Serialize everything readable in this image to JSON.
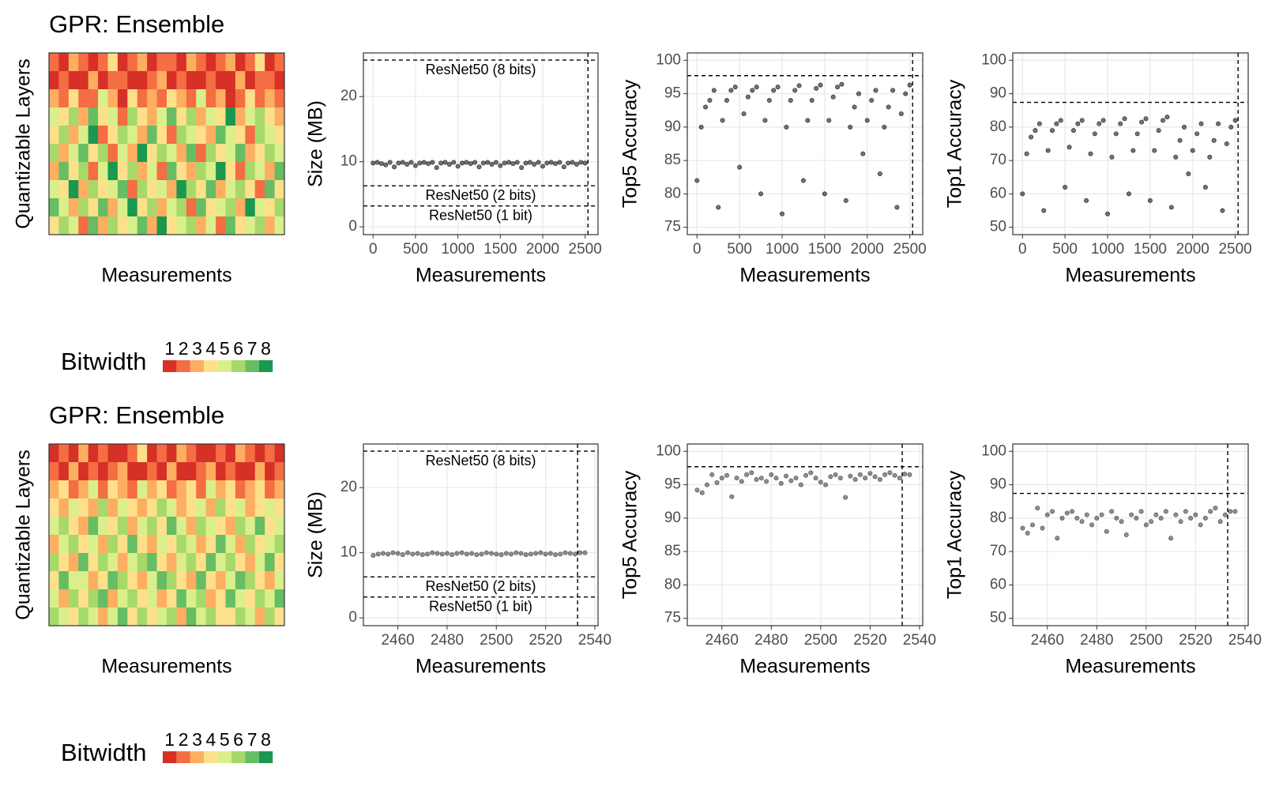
{
  "chart_data": [
    {
      "type": "heatmap",
      "title": "GPR: Ensemble",
      "x_label": "Measurements",
      "y_label": "Quantizable Layers",
      "legend_title": "Bitwidth",
      "legend_values": [
        1,
        2,
        3,
        4,
        5,
        6,
        7,
        8
      ],
      "colors": [
        "#d73027",
        "#f46d43",
        "#fdae61",
        "#fee08b",
        "#d9ef8b",
        "#a6d96a",
        "#66bd63",
        "#1a9850"
      ],
      "values": [
        [
          2,
          1,
          3,
          2,
          1,
          2,
          4,
          1,
          2,
          3,
          1,
          2,
          2,
          1,
          3,
          2,
          1,
          2,
          3,
          1,
          2,
          4,
          1,
          2
        ],
        [
          1,
          2,
          1,
          1,
          3,
          1,
          2,
          2,
          1,
          1,
          2,
          3,
          1,
          2,
          1,
          1,
          2,
          1,
          1,
          3,
          1,
          2,
          2,
          1
        ],
        [
          3,
          2,
          4,
          2,
          2,
          5,
          3,
          1,
          4,
          2,
          3,
          2,
          4,
          3,
          2,
          5,
          2,
          3,
          1,
          2,
          4,
          2,
          3,
          2
        ],
        [
          5,
          4,
          6,
          3,
          7,
          4,
          5,
          2,
          6,
          4,
          3,
          5,
          7,
          4,
          6,
          3,
          5,
          4,
          8,
          3,
          5,
          6,
          4,
          3
        ],
        [
          4,
          6,
          3,
          5,
          8,
          2,
          4,
          6,
          5,
          3,
          7,
          4,
          2,
          6,
          5,
          4,
          3,
          7,
          5,
          4,
          2,
          6,
          5,
          4
        ],
        [
          6,
          3,
          5,
          7,
          4,
          6,
          2,
          5,
          3,
          8,
          4,
          6,
          5,
          3,
          7,
          2,
          6,
          4,
          5,
          7,
          3,
          4,
          6,
          5
        ],
        [
          3,
          7,
          4,
          6,
          2,
          5,
          8,
          4,
          6,
          3,
          5,
          2,
          7,
          4,
          3,
          6,
          5,
          8,
          4,
          2,
          6,
          5,
          3,
          7
        ],
        [
          5,
          4,
          8,
          3,
          6,
          4,
          5,
          7,
          2,
          6,
          4,
          5,
          3,
          8,
          6,
          4,
          7,
          3,
          5,
          6,
          4,
          2,
          7,
          4
        ],
        [
          7,
          5,
          3,
          6,
          4,
          7,
          3,
          5,
          8,
          4,
          6,
          3,
          5,
          6,
          2,
          7,
          4,
          5,
          6,
          3,
          8,
          5,
          4,
          6
        ],
        [
          4,
          6,
          5,
          2,
          7,
          3,
          6,
          4,
          5,
          7,
          3,
          8,
          4,
          5,
          6,
          3,
          5,
          2,
          7,
          4,
          5,
          6,
          3,
          5
        ]
      ]
    },
    {
      "type": "scatter",
      "x_label": "Measurements",
      "y_label": "Size (MB)",
      "color": "#000000",
      "point_opacity": 0.55,
      "grid": true,
      "xlim": [
        -114,
        2652
      ],
      "ylim": [
        -1.2,
        26.7
      ],
      "xticks": [
        0,
        500,
        1000,
        1500,
        2000,
        2500
      ],
      "yticks": [
        0,
        10,
        20
      ],
      "hlines": [
        {
          "value": 25.6,
          "label": "ResNet50 (8 bits)"
        },
        {
          "value": 6.3,
          "label": "ResNet50 (2 bits)"
        },
        {
          "value": 3.2,
          "label": "ResNet50 (1 bit)"
        }
      ],
      "vlines": [
        2533
      ],
      "x": [
        0,
        50,
        100,
        150,
        200,
        250,
        300,
        350,
        400,
        450,
        500,
        550,
        600,
        650,
        700,
        750,
        800,
        850,
        900,
        950,
        1000,
        1050,
        1100,
        1150,
        1200,
        1250,
        1300,
        1350,
        1400,
        1450,
        1500,
        1550,
        1600,
        1650,
        1700,
        1750,
        1800,
        1850,
        1900,
        1950,
        2000,
        2050,
        2100,
        2150,
        2200,
        2250,
        2300,
        2350,
        2400,
        2450,
        2500
      ],
      "values": [
        9.8,
        9.9,
        9.7,
        9.5,
        9.9,
        9.2,
        9.8,
        9.9,
        9.6,
        9.9,
        9.4,
        9.8,
        9.9,
        9.7,
        9.9,
        9.1,
        9.8,
        9.9,
        9.6,
        9.9,
        9.3,
        9.8,
        9.9,
        9.7,
        9.9,
        9.2,
        9.8,
        9.9,
        9.6,
        9.9,
        9.4,
        9.8,
        9.9,
        9.7,
        9.9,
        9.1,
        9.8,
        9.9,
        9.6,
        9.9,
        9.3,
        9.8,
        9.9,
        9.7,
        9.9,
        9.2,
        9.8,
        9.9,
        9.6,
        9.9,
        9.8
      ]
    },
    {
      "type": "scatter",
      "x_label": "Measurements",
      "y_label": "Top5 Accuracy",
      "color": "#000000",
      "point_opacity": 0.55,
      "grid": true,
      "xlim": [
        -114,
        2652
      ],
      "ylim": [
        73.9,
        101.1
      ],
      "xticks": [
        0,
        500,
        1000,
        1500,
        2000,
        2500
      ],
      "yticks": [
        75,
        80,
        85,
        90,
        95,
        100
      ],
      "hlines": [
        {
          "value": 97.7
        }
      ],
      "vlines": [
        2533
      ],
      "x": [
        0,
        50,
        100,
        150,
        200,
        250,
        300,
        350,
        400,
        450,
        500,
        550,
        600,
        650,
        700,
        750,
        800,
        850,
        900,
        950,
        1000,
        1050,
        1100,
        1150,
        1200,
        1250,
        1300,
        1350,
        1400,
        1450,
        1500,
        1550,
        1600,
        1650,
        1700,
        1750,
        1800,
        1850,
        1900,
        1950,
        2000,
        2050,
        2100,
        2150,
        2200,
        2250,
        2300,
        2350,
        2400,
        2450,
        2500
      ],
      "values": [
        82,
        90,
        93,
        94,
        95.5,
        78,
        91,
        94,
        95.5,
        96,
        84,
        92,
        94.5,
        95.5,
        96,
        80,
        91,
        94,
        95.5,
        96,
        77,
        90,
        94,
        95.5,
        96.2,
        82,
        91,
        94,
        95.8,
        96.3,
        80,
        91,
        94.5,
        96,
        96.4,
        79,
        90,
        93,
        95,
        86,
        91,
        94,
        95.5,
        83,
        90,
        93,
        95.5,
        78,
        92,
        95,
        96.3
      ]
    },
    {
      "type": "scatter",
      "x_label": "Measurements",
      "y_label": "Top1 Accuracy",
      "color": "#000000",
      "point_opacity": 0.55,
      "grid": true,
      "xlim": [
        -114,
        2652
      ],
      "ylim": [
        47.8,
        102.2
      ],
      "xticks": [
        0,
        500,
        1000,
        1500,
        2000,
        2500
      ],
      "yticks": [
        50,
        60,
        70,
        80,
        90,
        100
      ],
      "hlines": [
        {
          "value": 87.4
        }
      ],
      "vlines": [
        2533
      ],
      "x": [
        0,
        50,
        100,
        150,
        200,
        250,
        300,
        350,
        400,
        450,
        500,
        550,
        600,
        650,
        700,
        750,
        800,
        850,
        900,
        950,
        1000,
        1050,
        1100,
        1150,
        1200,
        1250,
        1300,
        1350,
        1400,
        1450,
        1500,
        1550,
        1600,
        1650,
        1700,
        1750,
        1800,
        1850,
        1900,
        1950,
        2000,
        2050,
        2100,
        2150,
        2200,
        2250,
        2300,
        2350,
        2400,
        2450,
        2500
      ],
      "values": [
        60,
        72,
        77,
        79,
        81,
        55,
        73,
        79,
        81,
        82,
        62,
        74,
        79,
        81,
        82,
        58,
        72,
        78,
        81,
        82,
        54,
        71,
        78,
        81,
        82.5,
        60,
        73,
        78,
        81.5,
        82.5,
        58,
        73,
        79,
        82,
        83,
        56,
        71,
        76,
        80,
        66,
        73,
        78,
        81,
        62,
        71,
        76,
        81,
        55,
        75,
        80,
        82
      ]
    },
    {
      "type": "heatmap",
      "title": "GPR: Ensemble",
      "x_label": "Measurements",
      "y_label": "Quantizable Layers",
      "legend_title": "Bitwidth",
      "legend_values": [
        1,
        2,
        3,
        4,
        5,
        6,
        7,
        8
      ],
      "colors": [
        "#d73027",
        "#f46d43",
        "#fdae61",
        "#fee08b",
        "#d9ef8b",
        "#a6d96a",
        "#66bd63",
        "#1a9850"
      ],
      "values": [
        [
          1,
          2,
          1,
          3,
          1,
          2,
          1,
          1,
          2,
          4,
          1,
          2,
          1,
          3,
          2,
          1,
          1,
          2,
          1,
          3,
          2,
          1,
          2,
          1
        ],
        [
          2,
          1,
          3,
          1,
          2,
          1,
          2,
          3,
          1,
          1,
          2,
          1,
          3,
          1,
          1,
          2,
          3,
          1,
          2,
          1,
          1,
          3,
          1,
          2
        ],
        [
          3,
          4,
          2,
          3,
          5,
          2,
          4,
          3,
          2,
          5,
          3,
          4,
          2,
          3,
          4,
          2,
          5,
          3,
          4,
          2,
          3,
          4,
          2,
          3
        ],
        [
          4,
          3,
          5,
          4,
          3,
          6,
          3,
          5,
          4,
          3,
          4,
          6,
          5,
          3,
          4,
          5,
          3,
          6,
          4,
          5,
          3,
          4,
          5,
          4
        ],
        [
          5,
          6,
          4,
          3,
          7,
          5,
          4,
          6,
          3,
          5,
          6,
          4,
          7,
          5,
          3,
          6,
          5,
          4,
          3,
          6,
          5,
          7,
          4,
          5
        ],
        [
          3,
          5,
          6,
          4,
          5,
          3,
          6,
          4,
          7,
          4,
          3,
          5,
          4,
          6,
          5,
          3,
          4,
          7,
          5,
          3,
          6,
          4,
          5,
          6
        ],
        [
          6,
          4,
          3,
          7,
          4,
          6,
          5,
          3,
          5,
          6,
          7,
          4,
          3,
          5,
          6,
          4,
          7,
          5,
          6,
          4,
          3,
          5,
          7,
          4
        ],
        [
          4,
          7,
          5,
          5,
          3,
          4,
          7,
          6,
          4,
          3,
          5,
          7,
          6,
          4,
          3,
          7,
          4,
          3,
          5,
          7,
          6,
          4,
          3,
          5
        ],
        [
          5,
          3,
          6,
          4,
          6,
          7,
          3,
          5,
          6,
          4,
          5,
          3,
          4,
          7,
          5,
          6,
          3,
          4,
          7,
          5,
          4,
          6,
          5,
          7
        ],
        [
          6,
          5,
          4,
          6,
          5,
          3,
          5,
          7,
          4,
          6,
          4,
          5,
          6,
          3,
          7,
          5,
          6,
          4,
          4,
          6,
          5,
          3,
          6,
          4
        ]
      ]
    },
    {
      "type": "scatter",
      "x_label": "Measurements",
      "y_label": "Size (MB)",
      "color": "#333333",
      "point_opacity": 0.55,
      "grid": true,
      "xlim": [
        2446,
        2541.3
      ],
      "ylim": [
        -1.2,
        26.7
      ],
      "xticks": [
        2460,
        2480,
        2500,
        2520,
        2540
      ],
      "yticks": [
        0,
        10,
        20
      ],
      "hlines": [
        {
          "value": 25.6,
          "label": "ResNet50 (8 bits)"
        },
        {
          "value": 6.3,
          "label": "ResNet50 (2 bits)"
        },
        {
          "value": 3.2,
          "label": "ResNet50 (1 bit)"
        }
      ],
      "vlines": [
        2533
      ],
      "x": [
        2450,
        2452,
        2454,
        2456,
        2458,
        2460,
        2462,
        2464,
        2466,
        2468,
        2470,
        2472,
        2474,
        2476,
        2478,
        2480,
        2482,
        2484,
        2486,
        2488,
        2490,
        2492,
        2494,
        2496,
        2498,
        2500,
        2502,
        2504,
        2506,
        2508,
        2510,
        2512,
        2514,
        2516,
        2518,
        2520,
        2522,
        2524,
        2526,
        2528,
        2530,
        2532,
        2534,
        2536
      ],
      "values": [
        9.6,
        9.8,
        9.9,
        9.8,
        10,
        9.9,
        9.7,
        10,
        9.8,
        9.9,
        9.7,
        9.8,
        10,
        9.9,
        9.8,
        9.9,
        9.7,
        9.9,
        10,
        9.8,
        9.9,
        9.7,
        9.8,
        10,
        9.9,
        9.8,
        9.7,
        9.9,
        9.8,
        10,
        9.9,
        9.7,
        9.8,
        9.9,
        10,
        9.8,
        9.9,
        9.7,
        9.8,
        10,
        9.9,
        9.8,
        10,
        10
      ]
    },
    {
      "type": "scatter",
      "x_label": "Measurements",
      "y_label": "Top5 Accuracy",
      "color": "#333333",
      "point_opacity": 0.55,
      "grid": true,
      "xlim": [
        2446,
        2541.3
      ],
      "ylim": [
        73.9,
        101.1
      ],
      "xticks": [
        2460,
        2480,
        2500,
        2520,
        2540
      ],
      "yticks": [
        75,
        80,
        85,
        90,
        95,
        100
      ],
      "hlines": [
        {
          "value": 97.7
        }
      ],
      "vlines": [
        2533
      ],
      "x": [
        2450,
        2452,
        2454,
        2456,
        2458,
        2460,
        2462,
        2464,
        2466,
        2468,
        2470,
        2472,
        2474,
        2476,
        2478,
        2480,
        2482,
        2484,
        2486,
        2488,
        2490,
        2492,
        2494,
        2496,
        2498,
        2500,
        2502,
        2504,
        2506,
        2508,
        2510,
        2512,
        2514,
        2516,
        2518,
        2520,
        2522,
        2524,
        2526,
        2528,
        2530,
        2532,
        2534,
        2536
      ],
      "values": [
        94.2,
        93.8,
        95,
        96.5,
        95.3,
        96,
        96.4,
        93.2,
        96,
        95.5,
        96.5,
        96.8,
        95.8,
        96,
        95.5,
        96.5,
        96,
        95.2,
        96.3,
        95.6,
        96,
        95,
        96.4,
        96.8,
        96,
        95.4,
        95,
        96.2,
        96.5,
        96,
        93.1,
        96.3,
        95.8,
        96.5,
        96,
        96.7,
        96.2,
        95.8,
        96.5,
        96.8,
        96.4,
        96,
        96.6,
        96.5
      ]
    },
    {
      "type": "scatter",
      "x_label": "Measurements",
      "y_label": "Top1 Accuracy",
      "color": "#333333",
      "point_opacity": 0.55,
      "grid": true,
      "xlim": [
        2446,
        2541.3
      ],
      "ylim": [
        47.8,
        102.2
      ],
      "xticks": [
        2460,
        2480,
        2500,
        2520,
        2540
      ],
      "yticks": [
        50,
        60,
        70,
        80,
        90,
        100
      ],
      "hlines": [
        {
          "value": 87.4
        }
      ],
      "vlines": [
        2533
      ],
      "x": [
        2450,
        2452,
        2454,
        2456,
        2458,
        2460,
        2462,
        2464,
        2466,
        2468,
        2470,
        2472,
        2474,
        2476,
        2478,
        2480,
        2482,
        2484,
        2486,
        2488,
        2490,
        2492,
        2494,
        2496,
        2498,
        2500,
        2502,
        2504,
        2506,
        2508,
        2510,
        2512,
        2514,
        2516,
        2518,
        2520,
        2522,
        2524,
        2526,
        2528,
        2530,
        2532,
        2534,
        2536
      ],
      "values": [
        77,
        75.5,
        78,
        83,
        77,
        81,
        82,
        74,
        80,
        81.5,
        82,
        80,
        79,
        81,
        78,
        80,
        81,
        76,
        82,
        80,
        79,
        75,
        81,
        80,
        82,
        78,
        79,
        81,
        80,
        82,
        74,
        81,
        79,
        82,
        80,
        81,
        78,
        80,
        82,
        83,
        79,
        81,
        82,
        82
      ]
    }
  ]
}
